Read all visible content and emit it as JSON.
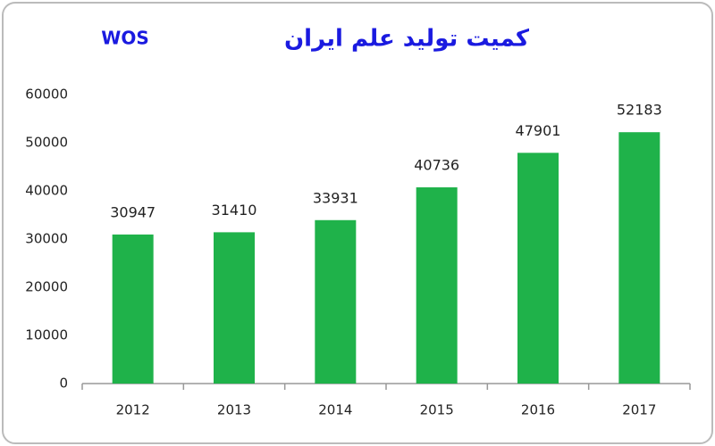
{
  "chart_data": {
    "type": "bar",
    "title": "کمیت تولید علم ایران",
    "subtitle": "WOS",
    "categories": [
      "2012",
      "2013",
      "2014",
      "2015",
      "2016",
      "2017"
    ],
    "values": [
      30947,
      31410,
      33931,
      40736,
      47901,
      52183
    ],
    "color": "#1fb24a",
    "title_color": "#1a1ae0",
    "ylim": [
      0,
      60000
    ],
    "yticks": [
      0,
      10000,
      20000,
      30000,
      40000,
      50000,
      60000
    ],
    "grid": false,
    "value_labels_shown": true
  }
}
